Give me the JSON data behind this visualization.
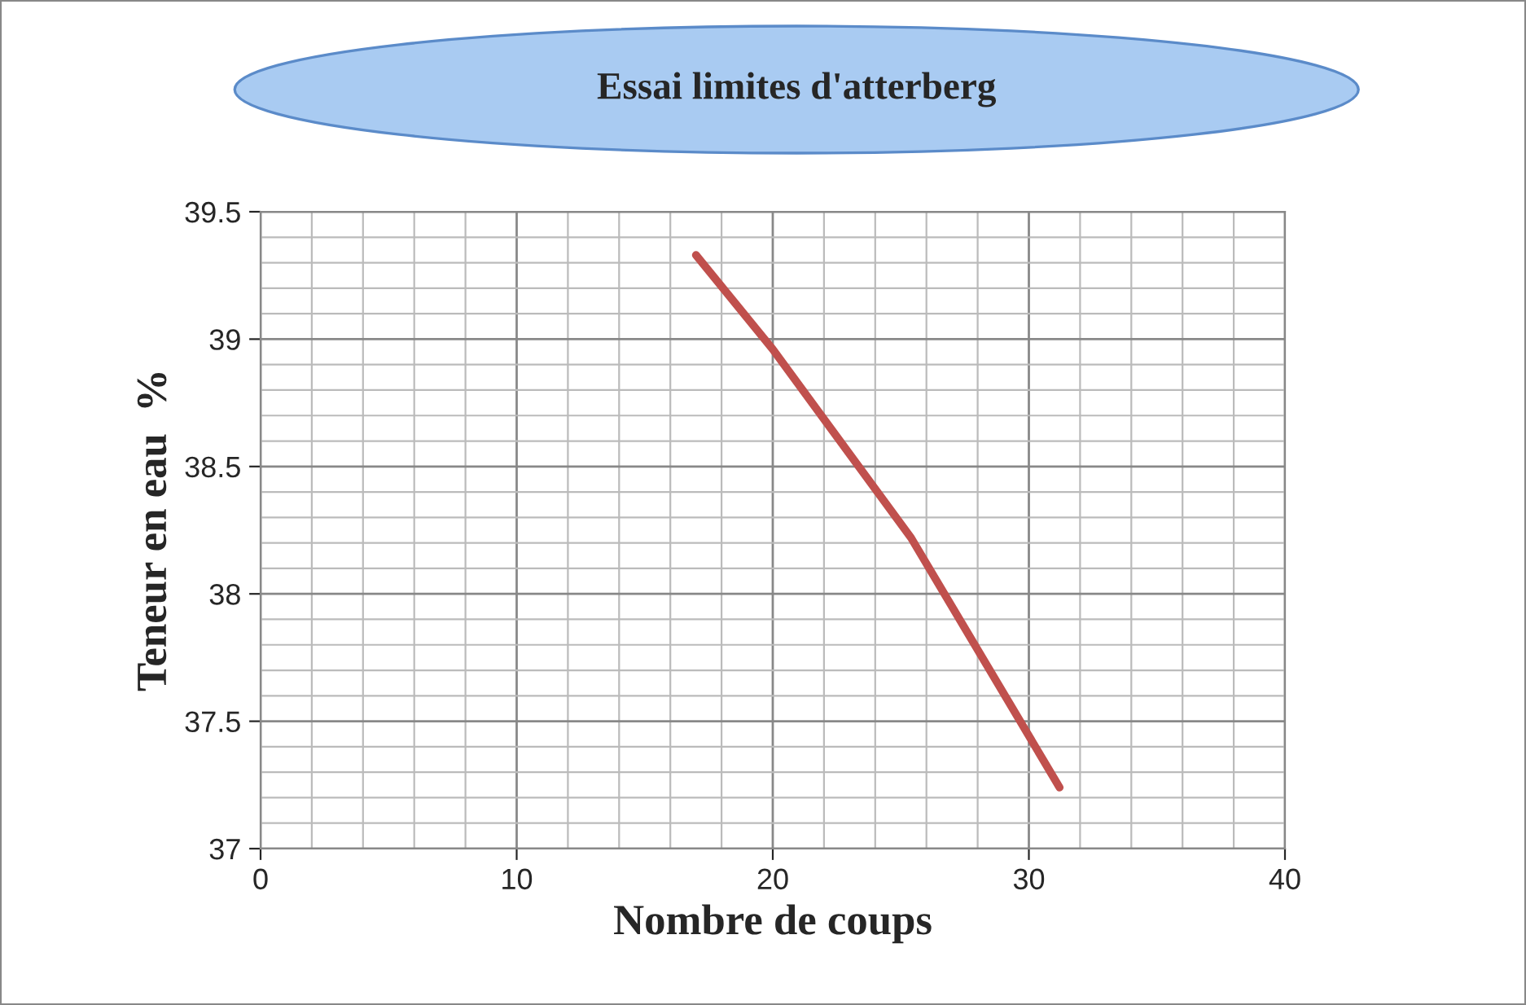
{
  "chart_data": {
    "type": "line",
    "title": "Essai limites d'atterberg",
    "xlabel": "Nombre de coups",
    "ylabel": "Teneur en eau  %",
    "series": [
      {
        "color": "#c0504d",
        "x": [
          17,
          20,
          25.4,
          31.2
        ],
        "values": [
          39.33,
          38.96,
          38.22,
          37.24
        ]
      }
    ],
    "xlim": [
      0,
      40
    ],
    "xticks": [
      0,
      10,
      20,
      30,
      40
    ],
    "ylim": [
      37,
      39.5
    ],
    "yticks": [
      37,
      37.5,
      38,
      38.5,
      39,
      39.5
    ],
    "grid": true,
    "legend": false,
    "marker": "none",
    "line_style": "solid"
  }
}
